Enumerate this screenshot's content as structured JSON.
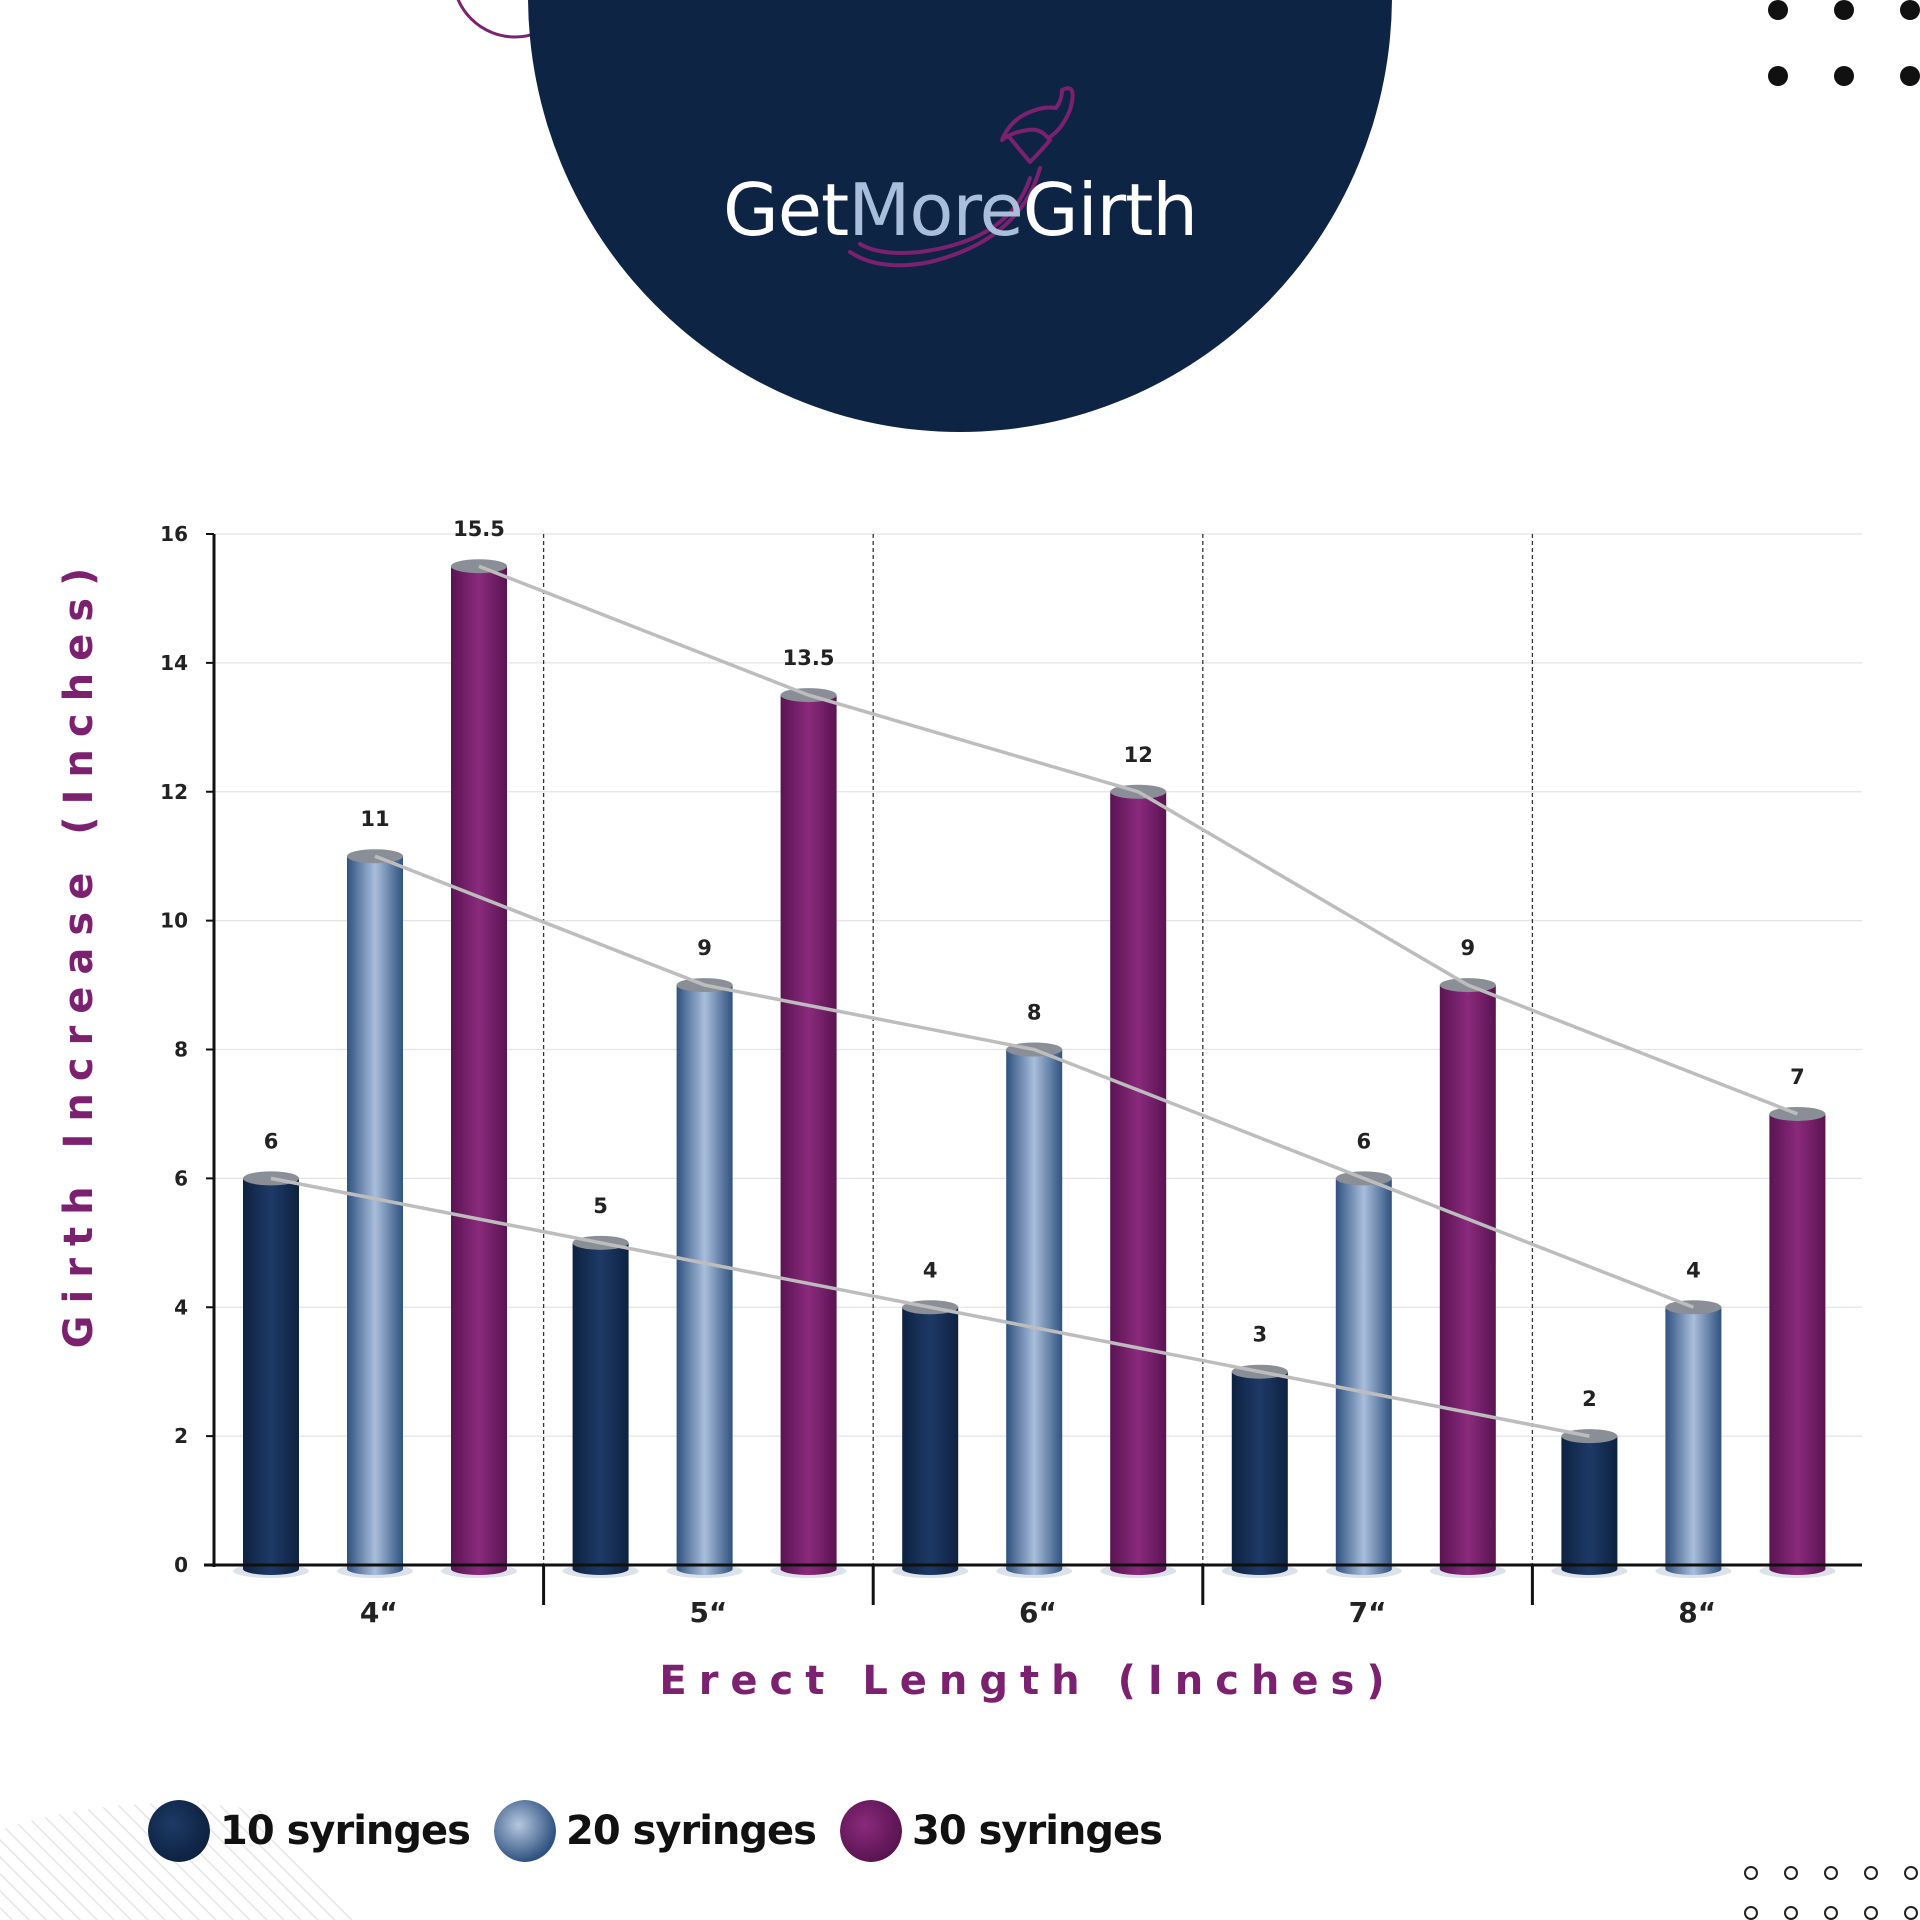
{
  "brand": {
    "logo_part1": "Get",
    "logo_part2": "More",
    "logo_part3": "Girth",
    "navy": "#0e2444",
    "light_blue": "#a9bedb",
    "purple": "#7b2170"
  },
  "chart_data": {
    "type": "bar",
    "title": "",
    "xlabel": "Erect Length (Inches)",
    "ylabel": "Girth Increase (Inches)",
    "categories": [
      "4“",
      "5“",
      "6“",
      "7“",
      "8“"
    ],
    "ylim": [
      0,
      16
    ],
    "yticks": [
      "0",
      "2",
      "4",
      "6",
      "8",
      "10",
      "12",
      "14",
      "16"
    ],
    "grid": true,
    "legend_position": "bottom-left",
    "trend_lines": true,
    "series": [
      {
        "name": "10 syringes",
        "color": "#13294d",
        "values": [
          6,
          5,
          4,
          3,
          2
        ],
        "labels": [
          "6",
          "5",
          "4",
          "3",
          "2"
        ]
      },
      {
        "name": "20 syringes",
        "color": "#8da6c6",
        "values": [
          11,
          9,
          8,
          6,
          4
        ],
        "labels": [
          "11",
          "9",
          "8",
          "6",
          "4"
        ]
      },
      {
        "name": "30 syringes",
        "color": "#7b2170",
        "values": [
          15.5,
          13.5,
          12,
          9,
          7
        ],
        "labels": [
          "15.5",
          "13.5",
          "12",
          "9",
          "7"
        ]
      }
    ]
  }
}
